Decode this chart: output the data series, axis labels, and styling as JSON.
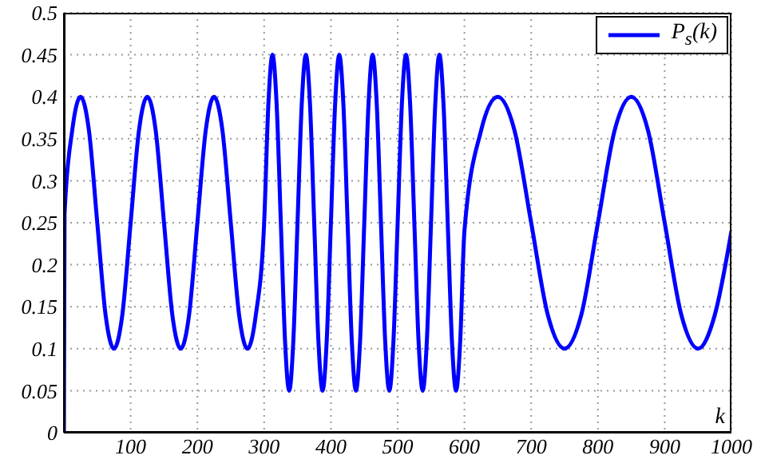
{
  "chart_data": {
    "type": "line",
    "xlabel": "k",
    "xlim": [
      0,
      1000
    ],
    "xticks": [
      100,
      200,
      300,
      400,
      500,
      600,
      700,
      800,
      900,
      1000
    ],
    "ylim": [
      0,
      0.5
    ],
    "yticks": [
      0,
      0.05,
      0.1,
      0.15,
      0.2,
      0.25,
      0.3,
      0.35,
      0.4,
      0.45,
      0.5
    ],
    "grid": true,
    "legend": "top right",
    "marker": "none",
    "line_style": "solid",
    "series": [
      {
        "name": "P$_{s}$(k)",
        "color": "#0000ff",
        "x": [
          0,
          1,
          12.5,
          25,
          37.5,
          50,
          62.5,
          75,
          87.5,
          100,
          112.5,
          125,
          137.5,
          150,
          162.5,
          175,
          187.5,
          200,
          212.5,
          225,
          237.5,
          250,
          262.5,
          275,
          287.5,
          300,
          306.25,
          312.5,
          318.75,
          325,
          331.25,
          337.5,
          343.75,
          350,
          356.25,
          362.5,
          368.75,
          375,
          381.25,
          387.5,
          393.75,
          400,
          406.25,
          412.5,
          418.75,
          425,
          431.25,
          437.5,
          443.75,
          450,
          456.25,
          462.5,
          468.75,
          475,
          481.25,
          487.5,
          493.75,
          500,
          506.25,
          512.5,
          518.75,
          525,
          531.25,
          537.5,
          543.75,
          550,
          556.25,
          562.5,
          568.75,
          575,
          581.25,
          587.5,
          593.75,
          600,
          625,
          650,
          675,
          700,
          725,
          750,
          775,
          800,
          825,
          850,
          875,
          900,
          925,
          950,
          975,
          1000
        ],
        "values": [
          0,
          0.26,
          0.36,
          0.4,
          0.36,
          0.25,
          0.14,
          0.1,
          0.14,
          0.25,
          0.36,
          0.4,
          0.36,
          0.25,
          0.14,
          0.1,
          0.14,
          0.25,
          0.36,
          0.4,
          0.36,
          0.25,
          0.14,
          0.1,
          0.14,
          0.25,
          0.39,
          0.45,
          0.39,
          0.25,
          0.11,
          0.05,
          0.11,
          0.25,
          0.39,
          0.45,
          0.39,
          0.25,
          0.11,
          0.05,
          0.11,
          0.25,
          0.39,
          0.45,
          0.39,
          0.25,
          0.11,
          0.05,
          0.11,
          0.25,
          0.39,
          0.45,
          0.39,
          0.25,
          0.11,
          0.05,
          0.11,
          0.25,
          0.39,
          0.45,
          0.39,
          0.25,
          0.11,
          0.05,
          0.11,
          0.25,
          0.39,
          0.45,
          0.39,
          0.25,
          0.11,
          0.05,
          0.11,
          0.24,
          0.36,
          0.4,
          0.36,
          0.25,
          0.14,
          0.1,
          0.14,
          0.25,
          0.36,
          0.4,
          0.36,
          0.25,
          0.14,
          0.1,
          0.14,
          0.24
        ]
      }
    ]
  }
}
